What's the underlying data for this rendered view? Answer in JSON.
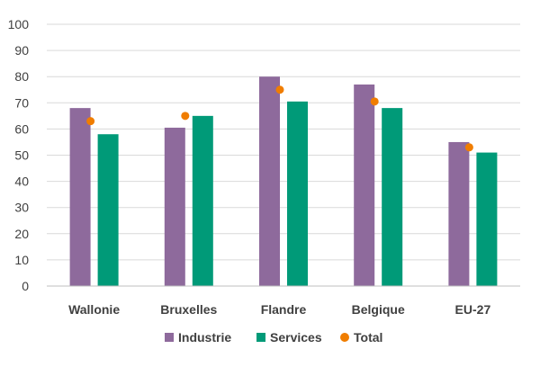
{
  "chart_data": {
    "type": "bar",
    "categories": [
      "Wallonie",
      "Bruxelles",
      "Flandre",
      "Belgique",
      "EU-27"
    ],
    "series": [
      {
        "name": "Industrie",
        "type": "bar",
        "color": "#8E6A9C",
        "values": [
          68,
          60.5,
          80,
          77,
          55
        ]
      },
      {
        "name": "Services",
        "type": "bar",
        "color": "#009A78",
        "values": [
          58,
          65,
          70.5,
          68,
          51
        ]
      },
      {
        "name": "Total",
        "type": "point",
        "color": "#F07D00",
        "values": [
          63,
          65,
          75,
          70.5,
          53
        ]
      }
    ],
    "title": "",
    "xlabel": "",
    "ylabel": "",
    "ylim": [
      0,
      100
    ],
    "yticks": [
      "0",
      "10",
      "20",
      "30",
      "40",
      "50",
      "60",
      "70",
      "80",
      "90",
      "100"
    ],
    "grid": true,
    "legend_position": "bottom"
  }
}
